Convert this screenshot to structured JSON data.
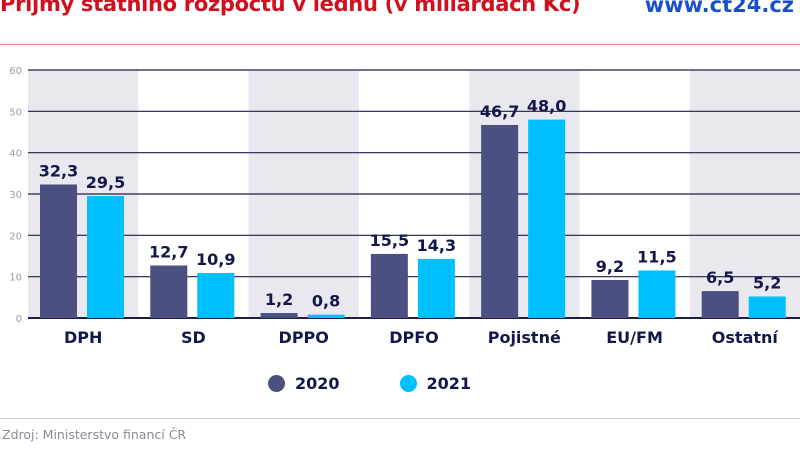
{
  "header": {
    "title": "Příjmy státního rozpočtu v lednu (v miliardách Kč)",
    "site": "www.ct24.cz"
  },
  "source": "Zdroj: Ministerstvo financí ČR",
  "chart_data": {
    "type": "bar",
    "title": "Příjmy státního rozpočtu v lednu (v miliardách Kč)",
    "categories": [
      "DPH",
      "SD",
      "DPPO",
      "DPFO",
      "Pojistné",
      "EU/FM",
      "Ostatní"
    ],
    "series": [
      {
        "name": "2020",
        "color": "#4a5080",
        "values": [
          32.3,
          12.7,
          1.2,
          15.5,
          46.7,
          9.2,
          6.5
        ],
        "labels": [
          "32,3",
          "12,7",
          "1,2",
          "15,5",
          "46,7",
          "9,2",
          "6,5"
        ]
      },
      {
        "name": "2021",
        "color": "#00bfff",
        "values": [
          29.5,
          10.9,
          0.8,
          14.3,
          48.0,
          11.5,
          5.2
        ],
        "labels": [
          "29,5",
          "10,9",
          "0,8",
          "14,3",
          "48,0",
          "11,5",
          "5,2"
        ]
      }
    ],
    "ylim": [
      0,
      60
    ],
    "yticks": [
      "0",
      "10",
      "20",
      "30",
      "40",
      "50",
      "60"
    ],
    "grid": true,
    "legend": "bottom-center",
    "colors": {
      "band": "#e8e8ee",
      "grid": "#1e1e4a",
      "text": "#14174a"
    }
  }
}
